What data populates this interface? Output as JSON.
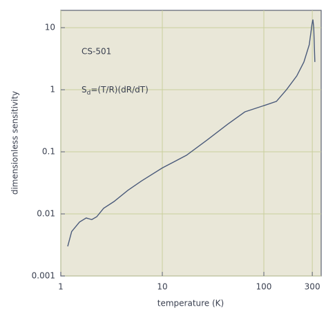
{
  "chart_data": {
    "type": "line",
    "x_label": "temperature (K)",
    "y_label": "dimensionless sensitivity",
    "annotations": {
      "sensor": "CS-501",
      "formula_main": "S",
      "formula_sub": "d",
      "formula_rest": "=(T/R)(dR/dT)"
    },
    "x": [
      1.17,
      1.28,
      1.53,
      1.78,
      2.02,
      2.26,
      2.64,
      3.34,
      4.57,
      6.25,
      10,
      17.3,
      27.6,
      44,
      65,
      105,
      133,
      167,
      211,
      248,
      280,
      298,
      304,
      310,
      318
    ],
    "values": [
      0.003,
      0.0052,
      0.0074,
      0.0086,
      0.0081,
      0.009,
      0.0123,
      0.0158,
      0.0239,
      0.034,
      0.055,
      0.088,
      0.155,
      0.278,
      0.44,
      0.57,
      0.65,
      1.0,
      1.67,
      2.8,
      5.3,
      11.4,
      13.5,
      10,
      2.8
    ],
    "color": "#4a5a7a",
    "xlog": true,
    "ylog": true,
    "xlim": [
      1,
      367
    ],
    "ylim": [
      0.001,
      19
    ],
    "xticks": [
      1,
      10,
      100,
      300
    ],
    "yticks": [
      0.001,
      0.01,
      0.1,
      1,
      10
    ],
    "grid": true
  }
}
